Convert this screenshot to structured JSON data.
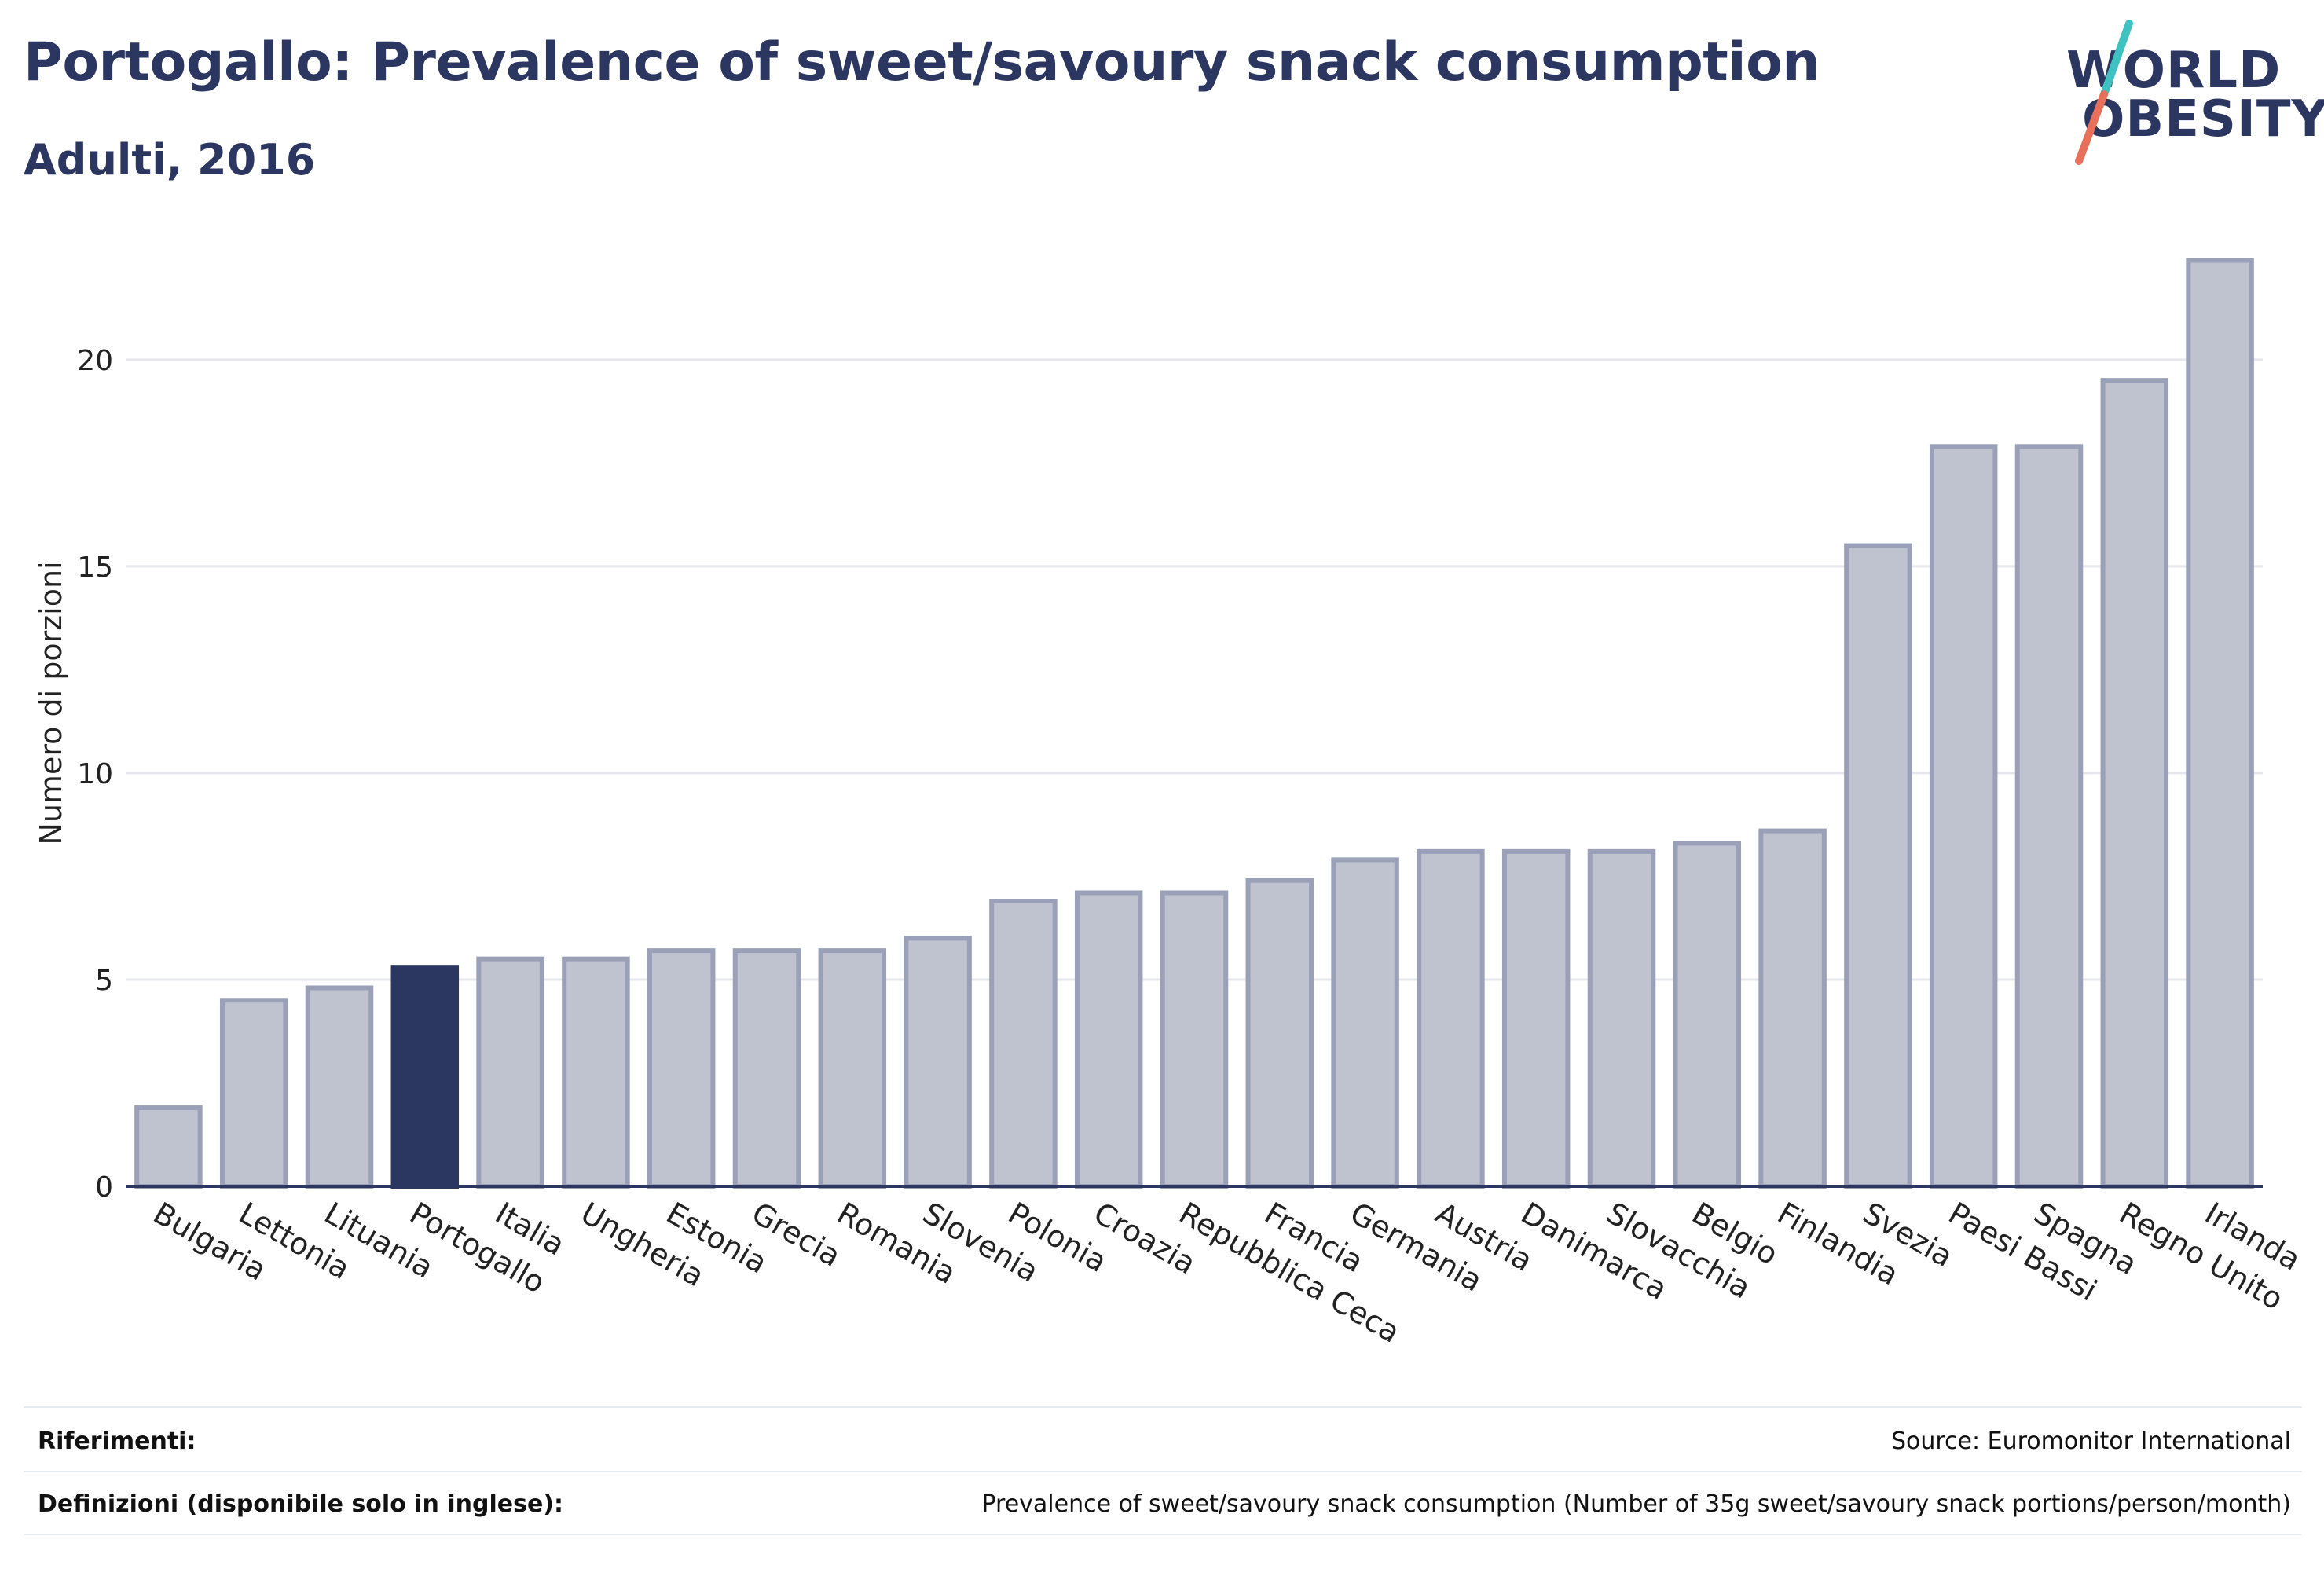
{
  "header": {
    "title": "Portogallo: Prevalence of sweet/savoury snack consumption",
    "subtitle": "Adulti, 2016"
  },
  "logo": {
    "line1": "WORLD",
    "line2": "OBESITY",
    "accent_colors": [
      "#3fc1c1",
      "#e8705a"
    ]
  },
  "colors": {
    "bar_fill": "#bfc3d0",
    "bar_stroke": "#9aa0b8",
    "highlight_fill": "#2b3661",
    "axis": "#2b3661",
    "grid": "#e6e7ed",
    "text": "#222222"
  },
  "chart_data": {
    "type": "bar",
    "title": "",
    "xlabel": "",
    "ylabel": "Numero di porzioni",
    "ylim": [
      0,
      23
    ],
    "yticks": [
      0,
      5,
      10,
      15,
      20
    ],
    "grid": true,
    "highlight": "Portogallo",
    "categories": [
      "Bulgaria",
      "Lettonia",
      "Lituania",
      "Portogallo",
      "Italia",
      "Ungheria",
      "Estonia",
      "Grecia",
      "Romania",
      "Slovenia",
      "Polonia",
      "Croazia",
      "Repubblica Ceca",
      "Francia",
      "Germania",
      "Austria",
      "Danimarca",
      "Slovacchia",
      "Belgio",
      "Finlandia",
      "Svezia",
      "Paesi Bassi",
      "Spagna",
      "Regno Unito",
      "Irlanda"
    ],
    "values": [
      1.9,
      4.5,
      4.8,
      5.3,
      5.5,
      5.5,
      5.7,
      5.7,
      5.7,
      6.0,
      6.9,
      7.1,
      7.1,
      7.4,
      7.9,
      8.1,
      8.1,
      8.1,
      8.3,
      8.6,
      15.5,
      17.9,
      17.9,
      19.5,
      22.4
    ]
  },
  "footer": {
    "references_label": "Riferimenti:",
    "references_value": "Source: Euromonitor International",
    "definitions_label": "Definizioni (disponibile solo in inglese):",
    "definitions_value": "Prevalence of sweet/savoury snack consumption (Number of 35g sweet/savoury snack portions/person/month)"
  }
}
